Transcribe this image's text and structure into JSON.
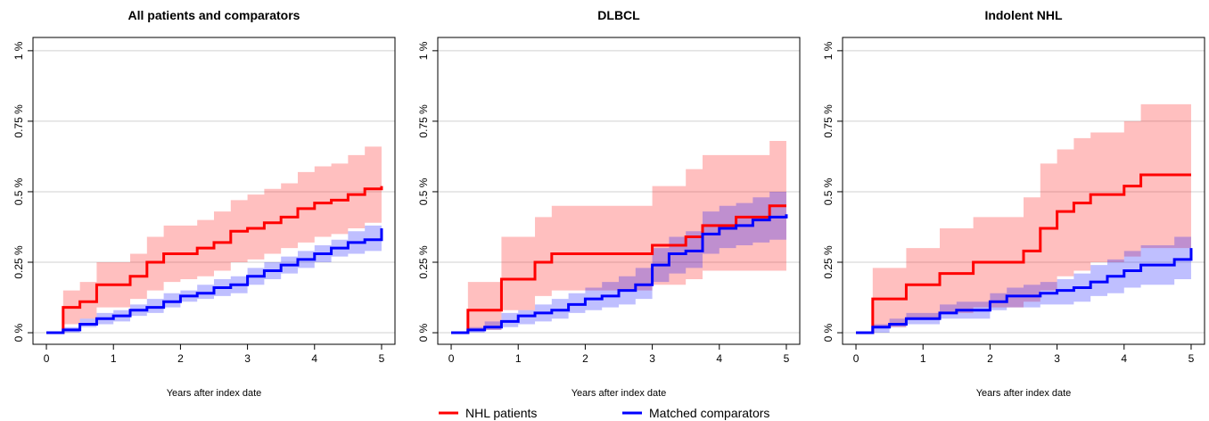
{
  "chart_data": [
    {
      "type": "step",
      "title": "All patients and comparators",
      "x_label": "Years after index date",
      "x": [
        0,
        0.25,
        0.5,
        0.75,
        1,
        1.25,
        1.5,
        1.75,
        2,
        2.25,
        2.5,
        2.75,
        3,
        3.25,
        3.5,
        3.75,
        4,
        4.25,
        4.5,
        4.75,
        5
      ],
      "xlim": [
        -0.2,
        5.2
      ],
      "xticks": [
        0,
        1,
        2,
        3,
        4,
        5
      ],
      "ylim": [
        -0.041,
        1.047
      ],
      "yticks": [
        {
          "value": 0,
          "label": "0 %"
        },
        {
          "value": 0.25,
          "label": "0.25 %"
        },
        {
          "value": 0.5,
          "label": "0.5 %"
        },
        {
          "value": 0.75,
          "label": "0.75 %"
        },
        {
          "value": 1,
          "label": "1 %"
        }
      ],
      "grid": true,
      "series": [
        {
          "color": "#ff0000",
          "values": [
            0,
            0.09,
            0.11,
            0.17,
            0.17,
            0.2,
            0.25,
            0.28,
            0.28,
            0.3,
            0.32,
            0.36,
            0.37,
            0.39,
            0.41,
            0.44,
            0.46,
            0.47,
            0.49,
            0.51,
            0.52
          ],
          "lower": [
            0,
            0.03,
            0.05,
            0.09,
            0.09,
            0.12,
            0.15,
            0.18,
            0.19,
            0.2,
            0.22,
            0.25,
            0.26,
            0.28,
            0.3,
            0.32,
            0.34,
            0.35,
            0.37,
            0.39,
            0.4
          ],
          "upper": [
            0,
            0.15,
            0.18,
            0.25,
            0.25,
            0.28,
            0.34,
            0.38,
            0.38,
            0.4,
            0.43,
            0.47,
            0.49,
            0.51,
            0.53,
            0.57,
            0.59,
            0.6,
            0.63,
            0.66,
            0.67
          ]
        },
        {
          "color": "#0000ff",
          "values": [
            0,
            0.01,
            0.03,
            0.05,
            0.06,
            0.08,
            0.09,
            0.11,
            0.13,
            0.14,
            0.16,
            0.17,
            0.2,
            0.22,
            0.24,
            0.26,
            0.28,
            0.3,
            0.32,
            0.33,
            0.37
          ],
          "lower": [
            0,
            0,
            0.02,
            0.03,
            0.04,
            0.06,
            0.07,
            0.09,
            0.11,
            0.12,
            0.13,
            0.14,
            0.17,
            0.19,
            0.21,
            0.23,
            0.25,
            0.27,
            0.28,
            0.29,
            0.32
          ],
          "upper": [
            0,
            0.02,
            0.05,
            0.07,
            0.08,
            0.1,
            0.12,
            0.14,
            0.15,
            0.17,
            0.19,
            0.2,
            0.23,
            0.25,
            0.27,
            0.29,
            0.31,
            0.33,
            0.36,
            0.38,
            0.43
          ]
        }
      ]
    },
    {
      "type": "step",
      "title": "DLBCL",
      "x_label": "Years after index date",
      "x": [
        0,
        0.25,
        0.5,
        0.75,
        1,
        1.25,
        1.5,
        1.75,
        2,
        2.25,
        2.5,
        2.75,
        3,
        3.25,
        3.5,
        3.75,
        4,
        4.25,
        4.5,
        4.75,
        5
      ],
      "xlim": [
        -0.2,
        5.2
      ],
      "xticks": [
        0,
        1,
        2,
        3,
        4,
        5
      ],
      "ylim": [
        -0.041,
        1.047
      ],
      "yticks": [
        {
          "value": 0,
          "label": "0 %"
        },
        {
          "value": 0.25,
          "label": "0.25 %"
        },
        {
          "value": 0.5,
          "label": "0.5 %"
        },
        {
          "value": 0.75,
          "label": "0.75 %"
        },
        {
          "value": 1,
          "label": "1 %"
        }
      ],
      "grid": true,
      "series": [
        {
          "name": "NHL patients",
          "color": "#ff0000",
          "values": [
            0,
            0.08,
            0.08,
            0.19,
            0.19,
            0.25,
            0.28,
            0.28,
            0.28,
            0.28,
            0.28,
            0.28,
            0.31,
            0.31,
            0.34,
            0.38,
            0.38,
            0.41,
            0.41,
            0.45,
            0.45
          ],
          "lower": [
            0,
            0.01,
            0.01,
            0.08,
            0.08,
            0.13,
            0.15,
            0.15,
            0.15,
            0.15,
            0.15,
            0.15,
            0.17,
            0.17,
            0.19,
            0.22,
            0.22,
            0.22,
            0.22,
            0.22,
            0.22
          ],
          "upper": [
            0,
            0.18,
            0.18,
            0.34,
            0.34,
            0.41,
            0.45,
            0.45,
            0.45,
            0.45,
            0.45,
            0.45,
            0.52,
            0.52,
            0.58,
            0.63,
            0.63,
            0.63,
            0.63,
            0.68,
            0.68
          ]
        },
        {
          "name": "Matched comparators",
          "color": "#0000ff",
          "values": [
            0,
            0.01,
            0.02,
            0.04,
            0.06,
            0.07,
            0.08,
            0.1,
            0.12,
            0.13,
            0.15,
            0.17,
            0.24,
            0.28,
            0.29,
            0.35,
            0.37,
            0.38,
            0.4,
            0.41,
            0.42
          ],
          "lower": [
            0,
            0,
            0.01,
            0.02,
            0.03,
            0.04,
            0.05,
            0.07,
            0.08,
            0.09,
            0.1,
            0.12,
            0.18,
            0.21,
            0.23,
            0.28,
            0.3,
            0.31,
            0.32,
            0.33,
            0.33
          ],
          "upper": [
            0,
            0.02,
            0.04,
            0.07,
            0.08,
            0.1,
            0.12,
            0.14,
            0.16,
            0.18,
            0.2,
            0.23,
            0.3,
            0.34,
            0.36,
            0.43,
            0.45,
            0.46,
            0.48,
            0.5,
            0.52
          ]
        }
      ]
    },
    {
      "type": "step",
      "title": "Indolent NHL",
      "x_label": "Years after index date",
      "x": [
        0,
        0.25,
        0.5,
        0.75,
        1,
        1.25,
        1.5,
        1.75,
        2,
        2.25,
        2.5,
        2.75,
        3,
        3.25,
        3.5,
        3.75,
        4,
        4.25,
        4.5,
        4.75,
        5
      ],
      "xlim": [
        -0.2,
        5.2
      ],
      "xticks": [
        0,
        1,
        2,
        3,
        4,
        5
      ],
      "ylim": [
        -0.041,
        1.047
      ],
      "yticks": [
        {
          "value": 0,
          "label": "0 %"
        },
        {
          "value": 0.25,
          "label": "0.25 %"
        },
        {
          "value": 0.5,
          "label": "0.5 %"
        },
        {
          "value": 0.75,
          "label": "0.75 %"
        },
        {
          "value": 1,
          "label": "1 %"
        }
      ],
      "grid": true,
      "series": [
        {
          "color": "#ff0000",
          "values": [
            0,
            0.12,
            0.12,
            0.17,
            0.17,
            0.21,
            0.21,
            0.25,
            0.25,
            0.25,
            0.29,
            0.37,
            0.43,
            0.46,
            0.49,
            0.49,
            0.52,
            0.56,
            0.56,
            0.56,
            0.56
          ],
          "lower": [
            0,
            0.02,
            0.02,
            0.05,
            0.05,
            0.07,
            0.07,
            0.09,
            0.09,
            0.09,
            0.11,
            0.15,
            0.2,
            0.22,
            0.25,
            0.25,
            0.27,
            0.3,
            0.3,
            0.3,
            0.3
          ],
          "upper": [
            0,
            0.23,
            0.23,
            0.3,
            0.3,
            0.37,
            0.37,
            0.41,
            0.41,
            0.41,
            0.48,
            0.6,
            0.65,
            0.69,
            0.71,
            0.71,
            0.75,
            0.81,
            0.81,
            0.81,
            0.81
          ]
        },
        {
          "color": "#0000ff",
          "values": [
            0,
            0.02,
            0.03,
            0.05,
            0.05,
            0.07,
            0.08,
            0.08,
            0.11,
            0.13,
            0.13,
            0.14,
            0.15,
            0.16,
            0.18,
            0.2,
            0.22,
            0.24,
            0.24,
            0.26,
            0.3
          ],
          "lower": [
            0,
            0,
            0.02,
            0.03,
            0.03,
            0.05,
            0.05,
            0.05,
            0.08,
            0.09,
            0.09,
            0.1,
            0.1,
            0.11,
            0.13,
            0.14,
            0.16,
            0.17,
            0.17,
            0.19,
            0.22
          ],
          "upper": [
            0,
            0.03,
            0.05,
            0.07,
            0.07,
            0.1,
            0.11,
            0.11,
            0.14,
            0.16,
            0.17,
            0.18,
            0.19,
            0.21,
            0.24,
            0.26,
            0.29,
            0.31,
            0.31,
            0.34,
            0.38
          ]
        }
      ]
    }
  ]
}
